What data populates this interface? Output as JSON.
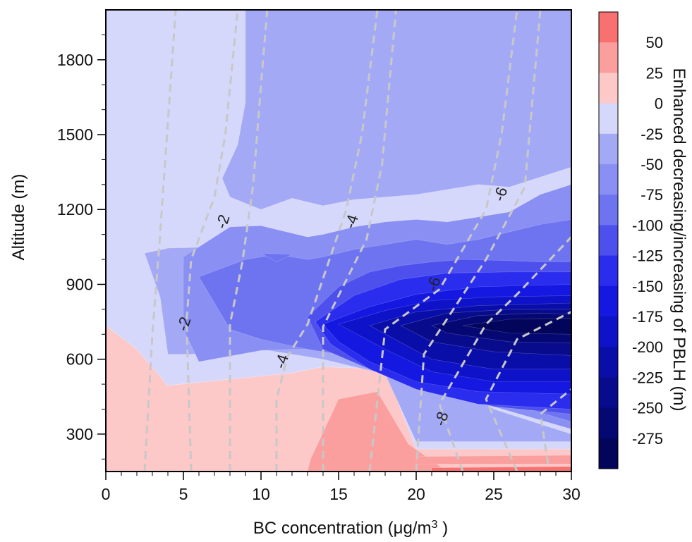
{
  "chart_data": {
    "type": "heatmap",
    "title": "",
    "xlabel": "BC concentration (μg/m³)",
    "xlabel_parts": {
      "main": "BC concentration (",
      "unit": "μg/m",
      "sup": "3",
      "close": " )"
    },
    "ylabel": "Altitude (m)",
    "colorbar_label": "Enhanced decreasing/increasing  of PBLH (m)",
    "xlim": [
      0,
      30
    ],
    "ylim": [
      150,
      2000
    ],
    "x_ticks": [
      0,
      5,
      10,
      15,
      20,
      25,
      30
    ],
    "y_ticks": [
      300,
      600,
      900,
      1200,
      1500,
      1800
    ],
    "colorbar": {
      "levels": [
        50,
        25,
        0,
        -25,
        -50,
        -75,
        -100,
        -125,
        -150,
        -175,
        -200,
        -225,
        -250,
        -275
      ],
      "colors": [
        "#f87070",
        "#fa9e9e",
        "#fcc8c8",
        "#d6d8fb",
        "#a4a9f6",
        "#8a8ff3",
        "#6e74f0",
        "#4e50ee",
        "#2a2cee",
        "#1418e0",
        "#0e12c8",
        "#0a0ea8",
        "#080b8c",
        "#050873",
        "#03055a"
      ]
    },
    "regions": [
      {
        "level": "0 to 25",
        "polygon": [
          [
            0,
            150
          ],
          [
            30,
            150
          ],
          [
            30,
            240
          ],
          [
            20,
            240
          ],
          [
            18,
            560
          ],
          [
            14,
            570
          ],
          [
            12,
            545
          ],
          [
            4,
            495
          ],
          [
            2,
            640
          ],
          [
            0,
            735
          ]
        ]
      },
      {
        "level": "25 to 50",
        "polygon": [
          [
            13,
            150
          ],
          [
            22,
            150
          ],
          [
            19.5,
            260
          ],
          [
            17.5,
            470
          ],
          [
            15,
            440
          ],
          [
            13.2,
            200
          ]
        ]
      },
      {
        "level": "25 to 50",
        "polygon": [
          [
            20,
            180
          ],
          [
            30,
            180
          ],
          [
            30,
            215
          ],
          [
            20,
            210
          ]
        ]
      },
      {
        "level": "50 to 75",
        "polygon": [
          [
            21,
            150
          ],
          [
            30,
            150
          ],
          [
            30,
            170
          ],
          [
            21,
            165
          ]
        ]
      },
      {
        "level": "-25 to 0",
        "polygon": [
          [
            0,
            735
          ],
          [
            2,
            640
          ],
          [
            4,
            495
          ],
          [
            12,
            545
          ],
          [
            14,
            570
          ],
          [
            18,
            560
          ],
          [
            20,
            240
          ],
          [
            30,
            240
          ],
          [
            30,
            2000
          ],
          [
            0,
            2000
          ]
        ]
      },
      {
        "level": "-50 to -25",
        "polygon": [
          [
            9,
            2000
          ],
          [
            30,
            2000
          ],
          [
            30,
            1370
          ],
          [
            26,
            1290
          ],
          [
            24,
            1300
          ],
          [
            20,
            1260
          ],
          [
            16,
            1240
          ],
          [
            14,
            1215
          ],
          [
            12,
            1245
          ],
          [
            10,
            1200
          ],
          [
            8,
            1250
          ],
          [
            7.5,
            1325
          ],
          [
            8.5,
            1460
          ],
          [
            9,
            1630
          ]
        ]
      },
      {
        "level": "-50 to -25",
        "polygon": [
          [
            2.5,
            1025
          ],
          [
            4,
            1045
          ],
          [
            7,
            1050
          ],
          [
            9,
            1020
          ],
          [
            12,
            1000
          ],
          [
            15,
            800
          ],
          [
            17,
            720
          ],
          [
            19,
            690
          ],
          [
            21,
            600
          ],
          [
            25,
            400
          ],
          [
            30,
            300
          ],
          [
            30,
            270
          ],
          [
            20,
            270
          ],
          [
            18,
            540
          ],
          [
            14,
            600
          ],
          [
            10,
            640
          ],
          [
            5.5,
            620
          ],
          [
            4,
            620
          ],
          [
            3.5,
            850
          ]
        ]
      },
      {
        "level": "-75 to -50",
        "polygon": [
          [
            5,
            1010
          ],
          [
            8,
            1130
          ],
          [
            10,
            1135
          ],
          [
            13,
            1090
          ],
          [
            14,
            1100
          ],
          [
            16,
            1130
          ],
          [
            18,
            1150
          ],
          [
            20,
            1160
          ],
          [
            22,
            1150
          ],
          [
            24,
            1170
          ],
          [
            26,
            1190
          ],
          [
            28,
            1260
          ],
          [
            30,
            1300
          ],
          [
            30,
            320
          ],
          [
            25,
            410
          ],
          [
            21,
            580
          ],
          [
            18,
            640
          ],
          [
            15,
            640
          ],
          [
            12,
            640
          ],
          [
            10,
            635
          ],
          [
            6,
            590
          ],
          [
            5,
            720
          ]
        ]
      },
      {
        "level": "-100 to -75",
        "polygon": [
          [
            6,
            930
          ],
          [
            9,
            1000
          ],
          [
            11,
            1020
          ],
          [
            13,
            1000
          ],
          [
            14,
            1010
          ],
          [
            16,
            1040
          ],
          [
            18,
            1060
          ],
          [
            20,
            1080
          ],
          [
            22,
            1060
          ],
          [
            24,
            1080
          ],
          [
            26,
            1110
          ],
          [
            28,
            1140
          ],
          [
            30,
            1160
          ],
          [
            30,
            350
          ],
          [
            25,
            440
          ],
          [
            21,
            560
          ],
          [
            18,
            610
          ],
          [
            15,
            620
          ],
          [
            13,
            640
          ],
          [
            10,
            680
          ],
          [
            8,
            720
          ]
        ]
      },
      {
        "level": "-100 to -75",
        "polygon": [
          [
            10,
            1025
          ],
          [
            12,
            1020
          ],
          [
            11,
            990
          ]
        ]
      },
      {
        "level": "-125 to -100",
        "polygon": [
          [
            13,
            770
          ],
          [
            15,
            890
          ],
          [
            17,
            950
          ],
          [
            19,
            975
          ],
          [
            21,
            990
          ],
          [
            23,
            1000
          ],
          [
            26,
            995
          ],
          [
            28,
            990
          ],
          [
            30,
            990
          ],
          [
            30,
            380
          ],
          [
            25,
            410
          ],
          [
            20,
            490
          ],
          [
            17,
            560
          ],
          [
            14,
            640
          ]
        ]
      },
      {
        "level": "-150 to -125",
        "polygon": [
          [
            13.5,
            750
          ],
          [
            16,
            855
          ],
          [
            19,
            920
          ],
          [
            22,
            945
          ],
          [
            26,
            950
          ],
          [
            30,
            950
          ],
          [
            30,
            400
          ],
          [
            24,
            420
          ],
          [
            20,
            480
          ],
          [
            17,
            560
          ],
          [
            14.5,
            660
          ]
        ]
      },
      {
        "level": "-175 to -150",
        "polygon": [
          [
            14,
            740
          ],
          [
            17,
            810
          ],
          [
            20,
            860
          ],
          [
            24,
            890
          ],
          [
            30,
            900
          ],
          [
            30,
            460
          ],
          [
            24,
            470
          ],
          [
            20,
            510
          ],
          [
            17,
            590
          ],
          [
            15,
            670
          ]
        ]
      },
      {
        "level": "-200 to -175",
        "polygon": [
          [
            15,
            740
          ],
          [
            18,
            795
          ],
          [
            21,
            835
          ],
          [
            25,
            850
          ],
          [
            30,
            855
          ],
          [
            30,
            510
          ],
          [
            25,
            510
          ],
          [
            21,
            550
          ],
          [
            18,
            640
          ]
        ]
      },
      {
        "level": "-225 to -200",
        "polygon": [
          [
            17,
            735
          ],
          [
            20,
            790
          ],
          [
            24,
            815
          ],
          [
            30,
            825
          ],
          [
            30,
            560
          ],
          [
            25,
            560
          ],
          [
            21,
            600
          ]
        ]
      },
      {
        "level": "-250 to -225",
        "polygon": [
          [
            19,
            735
          ],
          [
            22,
            785
          ],
          [
            26,
            800
          ],
          [
            30,
            800
          ],
          [
            30,
            615
          ],
          [
            25,
            630
          ],
          [
            21,
            670
          ]
        ]
      },
      {
        "level": "-275 to -250",
        "polygon": [
          [
            21,
            735
          ],
          [
            24,
            775
          ],
          [
            28,
            785
          ],
          [
            30,
            780
          ],
          [
            30,
            665
          ],
          [
            26,
            670
          ],
          [
            22,
            705
          ]
        ]
      },
      {
        "level": "< -275",
        "polygon": [
          [
            23,
            735
          ],
          [
            26,
            760
          ],
          [
            30,
            765
          ],
          [
            30,
            700
          ],
          [
            26,
            705
          ]
        ]
      }
    ],
    "contours": [
      {
        "label": "",
        "points": [
          [
            2.5,
            150
          ],
          [
            3,
            700
          ],
          [
            3.5,
            1100
          ],
          [
            4,
            1550
          ],
          [
            4.5,
            2000
          ]
        ]
      },
      {
        "label": "-2",
        "points": [
          [
            5.5,
            150
          ],
          [
            5.2,
            750
          ],
          [
            5.5,
            1000
          ],
          [
            7,
            1250
          ],
          [
            7.7,
            1500
          ],
          [
            8.5,
            2000
          ]
        ]
      },
      {
        "label": "",
        "points": [
          [
            8,
            150
          ],
          [
            8,
            740
          ],
          [
            8.8,
            990
          ],
          [
            9.5,
            1300
          ],
          [
            10,
            1700
          ],
          [
            10.4,
            2000
          ]
        ]
      },
      {
        "label": "-4",
        "points": [
          [
            11,
            150
          ],
          [
            11,
            440
          ],
          [
            11.7,
            610
          ],
          [
            13,
            740
          ],
          [
            15.5,
            1200
          ],
          [
            16.5,
            1500
          ],
          [
            17.5,
            2000
          ]
        ]
      },
      {
        "label": "",
        "points": [
          [
            14,
            150
          ],
          [
            14,
            730
          ],
          [
            16.8,
            1080
          ],
          [
            17.8,
            1380
          ],
          [
            18.7,
            2000
          ]
        ]
      },
      {
        "label": "-6",
        "points": [
          [
            17,
            150
          ],
          [
            18,
            720
          ],
          [
            21.5,
            880
          ],
          [
            24.5,
            1200
          ],
          [
            25.5,
            1500
          ],
          [
            26.5,
            2000
          ]
        ]
      },
      {
        "label": "",
        "points": [
          [
            20,
            150
          ],
          [
            20.5,
            620
          ],
          [
            24.5,
            1000
          ],
          [
            27,
            1290
          ],
          [
            28,
            2000
          ]
        ]
      },
      {
        "label": "-8",
        "points": [
          [
            23,
            150
          ],
          [
            21.5,
            420
          ],
          [
            24.5,
            740
          ],
          [
            26.5,
            860
          ],
          [
            30,
            1090
          ]
        ]
      },
      {
        "label": "",
        "points": [
          [
            26.5,
            150
          ],
          [
            24.5,
            440
          ],
          [
            26.5,
            680
          ],
          [
            30,
            790
          ]
        ]
      },
      {
        "label": "",
        "points": [
          [
            28.5,
            180
          ],
          [
            28,
            380
          ],
          [
            30,
            480
          ]
        ]
      }
    ],
    "contour_labels": [
      {
        "text": "-2",
        "x": 7.6,
        "y": 1150
      },
      {
        "text": "-4",
        "x": 15.9,
        "y": 1150
      },
      {
        "text": "-6",
        "x": 25.5,
        "y": 1260
      },
      {
        "text": "-6",
        "x": 21.2,
        "y": 900
      },
      {
        "text": "-2",
        "x": 5.1,
        "y": 740
      },
      {
        "text": "-4",
        "x": 11.4,
        "y": 590
      },
      {
        "text": "-8",
        "x": 21.7,
        "y": 360
      }
    ]
  }
}
